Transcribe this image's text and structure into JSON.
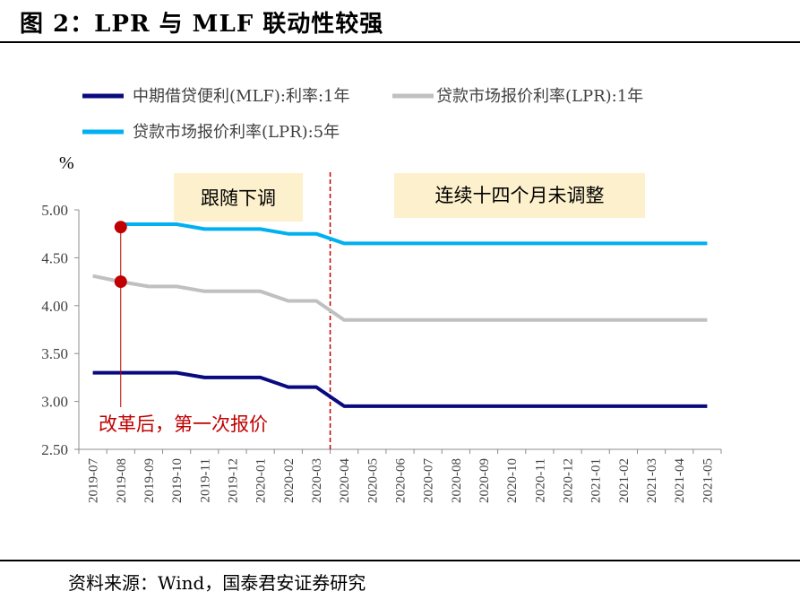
{
  "figure": {
    "title": "图 2：LPR 与 MLF 联动性较强",
    "source": "资料来源：Wind，国泰君安证券研究"
  },
  "chart_data": {
    "type": "line",
    "unit": "%",
    "ylim": [
      2.5,
      5.0
    ],
    "yticks": [
      "2.50",
      "3.00",
      "3.50",
      "4.00",
      "4.50",
      "5.00"
    ],
    "categories": [
      "2019-07",
      "2019-08",
      "2019-09",
      "2019-10",
      "2019-11",
      "2019-12",
      "2020-01",
      "2020-02",
      "2020-03",
      "2020-04",
      "2020-05",
      "2020-06",
      "2020-07",
      "2020-08",
      "2020-09",
      "2020-10",
      "2020-11",
      "2020-12",
      "2021-01",
      "2021-02",
      "2021-03",
      "2021-04",
      "2021-05"
    ],
    "series": [
      {
        "name": "中期借贷便利(MLF):利率:1年",
        "color": "#0a0a80",
        "values": [
          3.3,
          3.3,
          3.3,
          3.3,
          3.25,
          3.25,
          3.25,
          3.15,
          3.15,
          2.95,
          2.95,
          2.95,
          2.95,
          2.95,
          2.95,
          2.95,
          2.95,
          2.95,
          2.95,
          2.95,
          2.95,
          2.95,
          2.95
        ]
      },
      {
        "name": "贷款市场报价利率(LPR):1年",
        "color": "#c0c0c0",
        "values": [
          4.31,
          4.25,
          4.2,
          4.2,
          4.15,
          4.15,
          4.15,
          4.05,
          4.05,
          3.85,
          3.85,
          3.85,
          3.85,
          3.85,
          3.85,
          3.85,
          3.85,
          3.85,
          3.85,
          3.85,
          3.85,
          3.85,
          3.85
        ]
      },
      {
        "name": "贷款市场报价利率(LPR):5年",
        "color": "#00b0f0",
        "values": [
          null,
          4.85,
          4.85,
          4.85,
          4.8,
          4.8,
          4.8,
          4.75,
          4.75,
          4.65,
          4.65,
          4.65,
          4.65,
          4.65,
          4.65,
          4.65,
          4.65,
          4.65,
          4.65,
          4.65,
          4.65,
          4.65,
          4.65
        ]
      }
    ],
    "markers": [
      {
        "category": "2019-08",
        "value": 4.82,
        "color": "#c00000"
      },
      {
        "category": "2019-08",
        "value": 4.25,
        "color": "#c00000"
      }
    ],
    "annotations": {
      "follow_label": "跟随下调",
      "unchanged_label": "连续十四个月未调整",
      "first_quote_label": "改革后，第一次报价",
      "divider_category": "2020-04"
    }
  }
}
